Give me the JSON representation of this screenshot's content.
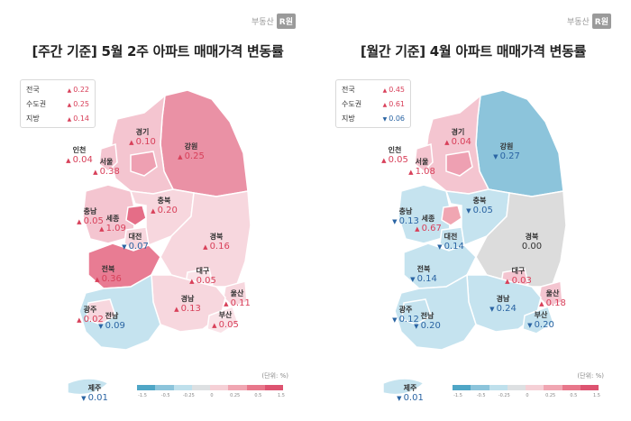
{
  "colors": {
    "up": "#d8405a",
    "down": "#2a64a3",
    "scale": [
      "#4fa6c6",
      "#8cc4db",
      "#bfe0ec",
      "#dde0e2",
      "#f5d0d6",
      "#f0a6b2",
      "#e8778b",
      "#dd5370"
    ]
  },
  "scale_ticks": [
    "-1.5",
    "-0.5",
    "-0.25",
    "0",
    "0.25",
    "0.5",
    "1.5"
  ],
  "panels": [
    {
      "id": "left",
      "title": "[주간 기준] 5월 2주 아파트 매매가격 변동률",
      "logo_text": "부동산",
      "logo_box": "R원",
      "unit": "(단위: %)",
      "legend": [
        {
          "label": "전국",
          "arrow": "▲",
          "value": "0.22",
          "dir": "up"
        },
        {
          "label": "수도권",
          "arrow": "▲",
          "value": "0.25",
          "dir": "up"
        },
        {
          "label": "지방",
          "arrow": "▲",
          "value": "0.14",
          "dir": "up"
        }
      ],
      "region_colors": {
        "gangwon": "#ea91a5",
        "gyeonggi": "#f4c5d0",
        "incheon": "#f4c5d0",
        "seoul": "#eea0b2",
        "chungnam": "#f4c5d0",
        "sejong": "#e56d87",
        "daejeon": "#f7d7de",
        "chungbuk": "#f7d7de",
        "gyeongbuk": "#f7d7de",
        "jeonbuk": "#e87c93",
        "daegu": "#fae3e8",
        "jeonnam": "#c5e3ef",
        "gwangju": "#f7d7de",
        "gyeongnam": "#f7d7de",
        "ulsan": "#f7d7de",
        "busan": "#fae3e8",
        "jeju": "#c5e3ef"
      },
      "labels": [
        {
          "name": "강원",
          "arrow": "▲",
          "value": "0.25",
          "dir": "up"
        },
        {
          "name": "경기",
          "arrow": "▲",
          "value": "0.10",
          "dir": "up"
        },
        {
          "name": "인천",
          "arrow": "▲",
          "value": "0.04",
          "dir": "up"
        },
        {
          "name": "서울",
          "arrow": "▲",
          "value": "0.38",
          "dir": "up"
        },
        {
          "name": "충북",
          "arrow": "▲",
          "value": "0.20",
          "dir": "up"
        },
        {
          "name": "충남",
          "arrow": "▲",
          "value": "0.05",
          "dir": "up"
        },
        {
          "name": "세종",
          "arrow": "▲",
          "value": "1.09",
          "dir": "up"
        },
        {
          "name": "대전",
          "arrow": "▼",
          "value": "0.07",
          "dir": "down"
        },
        {
          "name": "경북",
          "arrow": "▲",
          "value": "0.16",
          "dir": "up"
        },
        {
          "name": "전북",
          "arrow": "▲",
          "value": "0.36",
          "dir": "up"
        },
        {
          "name": "대구",
          "arrow": "▲",
          "value": "0.05",
          "dir": "up"
        },
        {
          "name": "울산",
          "arrow": "▲",
          "value": "0.11",
          "dir": "up"
        },
        {
          "name": "광주",
          "arrow": "▲",
          "value": "0.02",
          "dir": "up"
        },
        {
          "name": "전남",
          "arrow": "▼",
          "value": "0.09",
          "dir": "down"
        },
        {
          "name": "경남",
          "arrow": "▲",
          "value": "0.13",
          "dir": "up"
        },
        {
          "name": "부산",
          "arrow": "▲",
          "value": "0.05",
          "dir": "up"
        },
        {
          "name": "제주",
          "arrow": "▼",
          "value": "0.01",
          "dir": "down"
        }
      ]
    },
    {
      "id": "right",
      "title": "[월간 기준] 4월 아파트 매매가격 변동률",
      "logo_text": "부동산",
      "logo_box": "R원",
      "unit": "(단위: %)",
      "legend": [
        {
          "label": "전국",
          "arrow": "▲",
          "value": "0.45",
          "dir": "up"
        },
        {
          "label": "수도권",
          "arrow": "▲",
          "value": "0.61",
          "dir": "up"
        },
        {
          "label": "지방",
          "arrow": "▼",
          "value": "0.06",
          "dir": "down"
        }
      ],
      "region_colors": {
        "gangwon": "#8cc4db",
        "gyeonggi": "#f4c5d0",
        "incheon": "#f4c5d0",
        "seoul": "#eea0b2",
        "chungnam": "#c5e3ef",
        "sejong": "#f0a6b2",
        "daejeon": "#c5e3ef",
        "chungbuk": "#c5e3ef",
        "gyeongbuk": "#dcdcdc",
        "jeonbuk": "#c5e3ef",
        "daegu": "#f4c5d0",
        "jeonnam": "#c5e3ef",
        "gwangju": "#c5e3ef",
        "gyeongnam": "#c5e3ef",
        "ulsan": "#f4c5d0",
        "busan": "#c5e3ef",
        "jeju": "#c5e3ef"
      },
      "labels": [
        {
          "name": "강원",
          "arrow": "▼",
          "value": "0.27",
          "dir": "down"
        },
        {
          "name": "경기",
          "arrow": "▲",
          "value": "0.04",
          "dir": "up"
        },
        {
          "name": "인천",
          "arrow": "▲",
          "value": "0.05",
          "dir": "up"
        },
        {
          "name": "서울",
          "arrow": "▲",
          "value": "1.08",
          "dir": "up"
        },
        {
          "name": "충북",
          "arrow": "▼",
          "value": "0.05",
          "dir": "down"
        },
        {
          "name": "충남",
          "arrow": "▼",
          "value": "0.13",
          "dir": "down"
        },
        {
          "name": "세종",
          "arrow": "▲",
          "value": "0.67",
          "dir": "up"
        },
        {
          "name": "대전",
          "arrow": "▼",
          "value": "0.14",
          "dir": "down"
        },
        {
          "name": "경북",
          "arrow": "",
          "value": "0.00",
          "dir": "flat"
        },
        {
          "name": "전북",
          "arrow": "▼",
          "value": "0.14",
          "dir": "down"
        },
        {
          "name": "대구",
          "arrow": "▲",
          "value": "0.03",
          "dir": "up"
        },
        {
          "name": "울산",
          "arrow": "▲",
          "value": "0.18",
          "dir": "up"
        },
        {
          "name": "광주",
          "arrow": "▼",
          "value": "0.12",
          "dir": "down"
        },
        {
          "name": "전남",
          "arrow": "▼",
          "value": "0.20",
          "dir": "down"
        },
        {
          "name": "경남",
          "arrow": "▼",
          "value": "0.24",
          "dir": "down"
        },
        {
          "name": "부산",
          "arrow": "▼",
          "value": "0.20",
          "dir": "down"
        },
        {
          "name": "제주",
          "arrow": "▼",
          "value": "0.01",
          "dir": "down"
        }
      ]
    }
  ]
}
